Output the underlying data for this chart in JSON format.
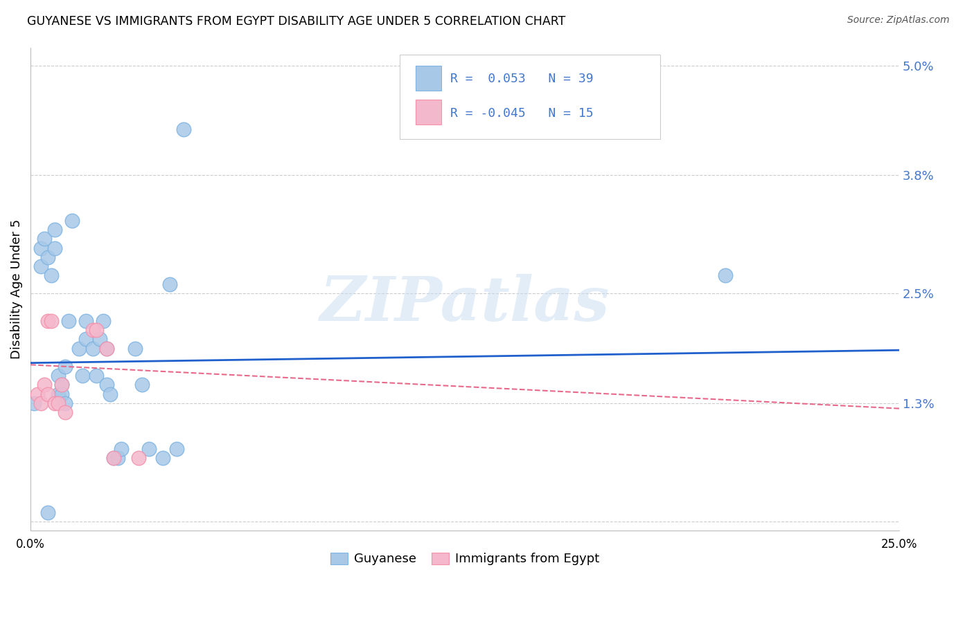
{
  "title": "GUYANESE VS IMMIGRANTS FROM EGYPT DISABILITY AGE UNDER 5 CORRELATION CHART",
  "source": "Source: ZipAtlas.com",
  "ylabel": "Disability Age Under 5",
  "xlim": [
    0.0,
    0.25
  ],
  "ylim": [
    -0.001,
    0.052
  ],
  "ytick_vals": [
    0.0,
    0.013,
    0.025,
    0.038,
    0.05
  ],
  "ytick_labels": [
    "",
    "1.3%",
    "2.5%",
    "3.8%",
    "5.0%"
  ],
  "xtick_vals": [
    0.0,
    0.05,
    0.1,
    0.15,
    0.2,
    0.25
  ],
  "xtick_labels": [
    "0.0%",
    "",
    "",
    "",
    "",
    "25.0%"
  ],
  "guyanese_color": "#A8C8E8",
  "egypt_color": "#F4B8CC",
  "guyanese_edge": "#7EB4E2",
  "egypt_edge": "#F490AA",
  "guyanese_line_color": "#2060CC",
  "egypt_line_color": "#E8688A",
  "grid_color": "#CCCCCC",
  "tick_color": "#4477CC",
  "guyanese_x": [
    0.001,
    0.003,
    0.003,
    0.004,
    0.005,
    0.006,
    0.007,
    0.007,
    0.008,
    0.008,
    0.009,
    0.009,
    0.01,
    0.01,
    0.011,
    0.012,
    0.014,
    0.015,
    0.016,
    0.016,
    0.018,
    0.019,
    0.02,
    0.021,
    0.022,
    0.022,
    0.023,
    0.024,
    0.025,
    0.026,
    0.03,
    0.032,
    0.034,
    0.038,
    0.04,
    0.042,
    0.044,
    0.2,
    0.005
  ],
  "guyanese_y": [
    0.013,
    0.03,
    0.028,
    0.031,
    0.029,
    0.027,
    0.032,
    0.03,
    0.016,
    0.014,
    0.015,
    0.014,
    0.017,
    0.013,
    0.022,
    0.033,
    0.019,
    0.016,
    0.02,
    0.022,
    0.019,
    0.016,
    0.02,
    0.022,
    0.019,
    0.015,
    0.014,
    0.007,
    0.007,
    0.008,
    0.019,
    0.015,
    0.008,
    0.007,
    0.026,
    0.008,
    0.043,
    0.027,
    0.001
  ],
  "egypt_x": [
    0.002,
    0.003,
    0.004,
    0.005,
    0.005,
    0.006,
    0.007,
    0.008,
    0.009,
    0.01,
    0.018,
    0.019,
    0.022,
    0.024,
    0.031
  ],
  "egypt_y": [
    0.014,
    0.013,
    0.015,
    0.014,
    0.022,
    0.022,
    0.013,
    0.013,
    0.015,
    0.012,
    0.021,
    0.021,
    0.019,
    0.007,
    0.007
  ],
  "guyanese_trend_x": [
    0.0,
    0.25
  ],
  "guyanese_trend_y": [
    0.0174,
    0.0188
  ],
  "egypt_trend_x": [
    0.0,
    0.25
  ],
  "egypt_trend_y": [
    0.0172,
    0.0124
  ],
  "watermark": "ZIPatlas",
  "bottom_legend_1": "Guyanese",
  "bottom_legend_2": "Immigrants from Egypt"
}
